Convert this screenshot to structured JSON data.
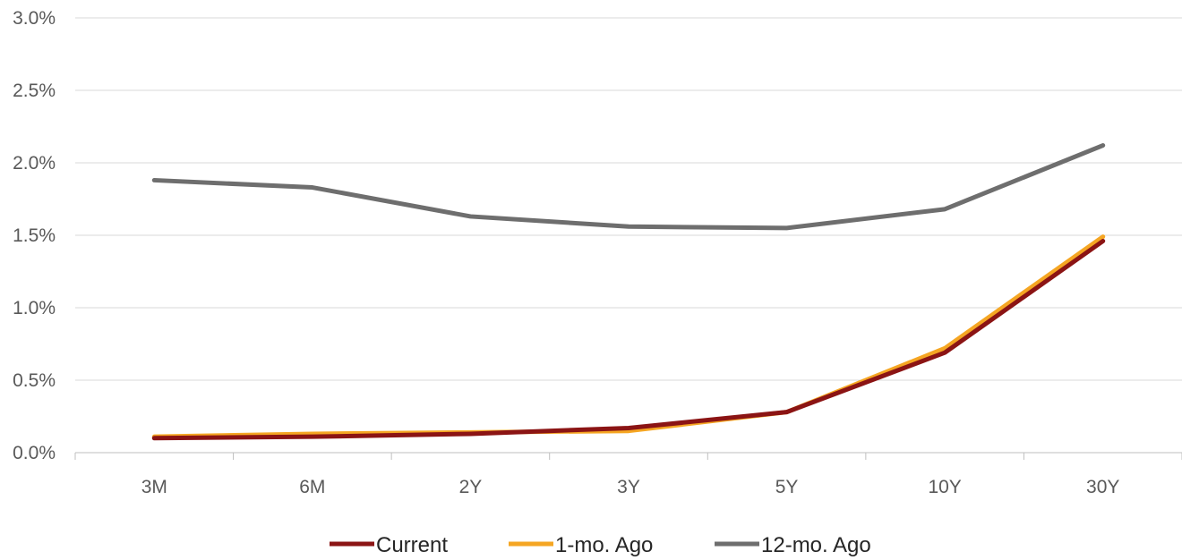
{
  "chart_data": {
    "type": "line",
    "categories": [
      "3M",
      "6M",
      "2Y",
      "3Y",
      "5Y",
      "10Y",
      "30Y"
    ],
    "series": [
      {
        "name": "Current",
        "color": "#8B1414",
        "values": [
          0.1,
          0.11,
          0.13,
          0.17,
          0.28,
          0.69,
          1.46
        ]
      },
      {
        "name": "1-mo. Ago",
        "color": "#F5A623",
        "values": [
          0.11,
          0.13,
          0.14,
          0.15,
          0.28,
          0.72,
          1.49
        ]
      },
      {
        "name": "12-mo. Ago",
        "color": "#6E6E6E",
        "values": [
          1.88,
          1.83,
          1.63,
          1.56,
          1.55,
          1.68,
          2.12
        ]
      }
    ],
    "ylim": [
      0,
      3
    ],
    "yticks": [
      "0.0%",
      "0.5%",
      "1.0%",
      "1.5%",
      "2.0%",
      "2.5%",
      "3.0%"
    ],
    "grid": true,
    "legend_position": "bottom",
    "title": "",
    "xlabel": "",
    "ylabel": ""
  }
}
